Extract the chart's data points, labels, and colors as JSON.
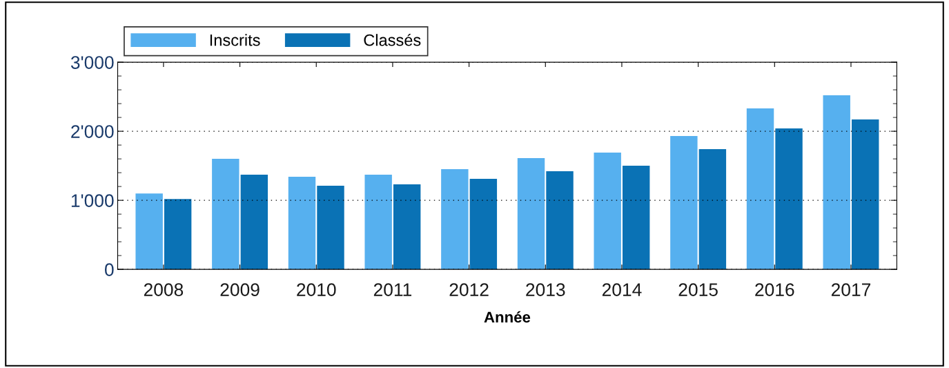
{
  "chart_data": {
    "type": "bar",
    "xlabel": "Année",
    "categories": [
      "2008",
      "2009",
      "2010",
      "2011",
      "2012",
      "2013",
      "2014",
      "2015",
      "2016",
      "2017"
    ],
    "series": [
      {
        "name": "Inscrits",
        "color": "#56b0ef",
        "values": [
          1100,
          1600,
          1340,
          1370,
          1450,
          1610,
          1690,
          1930,
          2330,
          2520
        ]
      },
      {
        "name": "Classés",
        "color": "#0a72b5",
        "values": [
          1020,
          1370,
          1210,
          1230,
          1310,
          1420,
          1500,
          1740,
          2040,
          2170
        ]
      }
    ],
    "ylim": [
      0,
      3000
    ],
    "yticks": [
      0,
      {
        "value": 1000,
        "label": "1'000"
      },
      {
        "value": 2000,
        "label": "2'000"
      },
      {
        "value": 3000,
        "label": "3'000"
      }
    ],
    "grid": "y",
    "legend": "top left"
  }
}
